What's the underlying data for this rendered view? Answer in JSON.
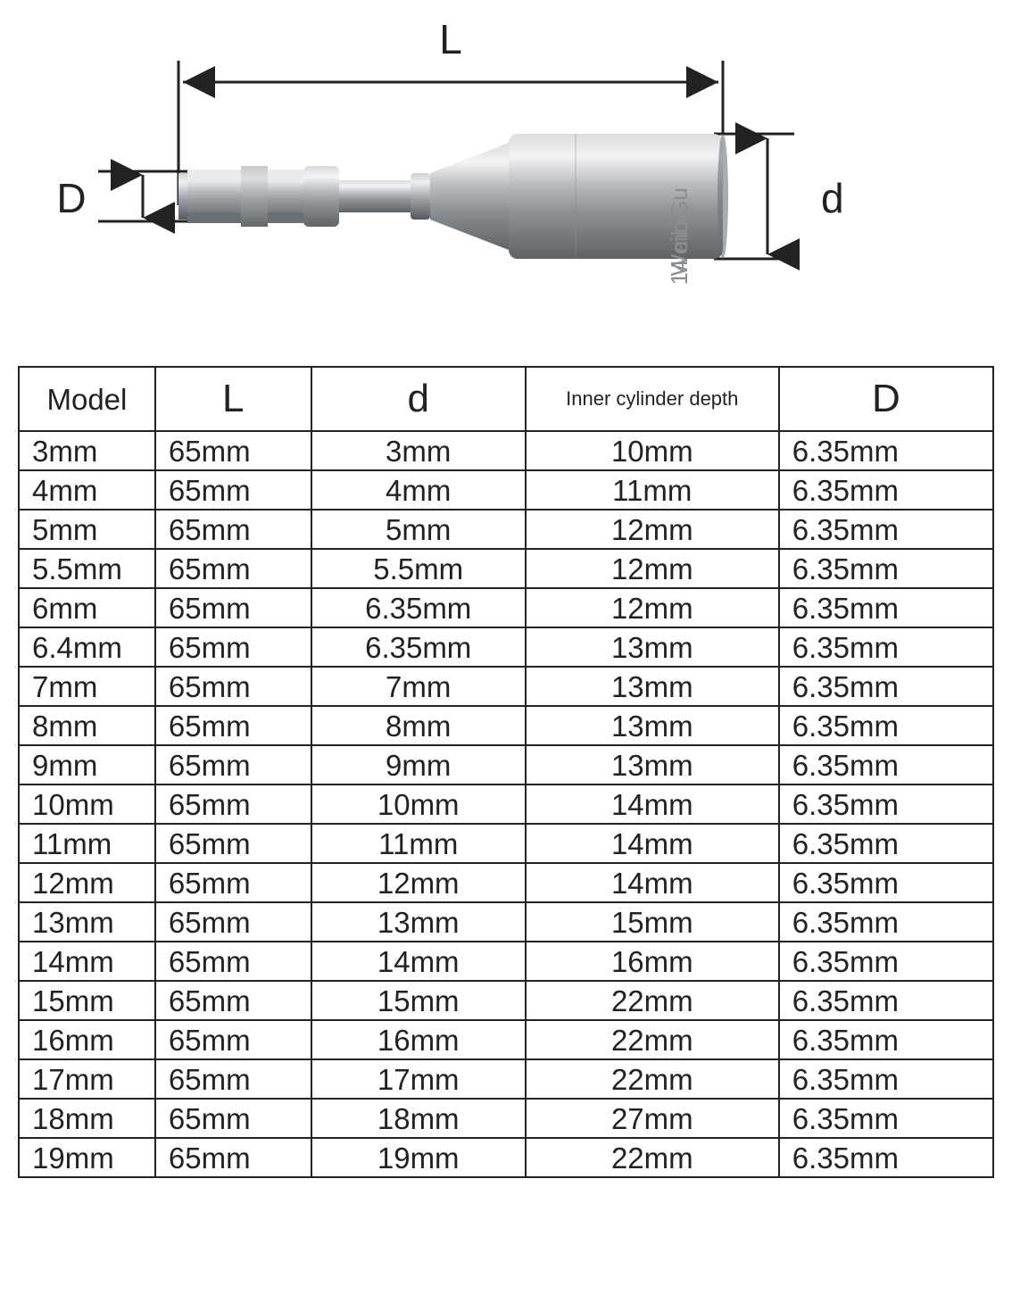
{
  "diagram": {
    "label_L": "L",
    "label_D": "D",
    "label_d": "d",
    "engraving_brand": "WeiLiGu",
    "engraving_size": "14 mm",
    "label_fontsize": 44,
    "label_color": "#222222",
    "dimension_line_color": "#222222",
    "dimension_line_width": 3,
    "tool_metal_light": "#c9cccf",
    "tool_metal_mid": "#a7abaf",
    "tool_metal_dark": "#7b8085",
    "tool_metal_shadow": "#55595e",
    "engraving_color": "#8a8e92",
    "background_color": "#ffffff"
  },
  "table": {
    "border_color": "#222222",
    "text_color": "#222222",
    "cell_fontsize": 33,
    "header_fontsize_label": 44,
    "header_fontsize_small": 22,
    "columns": [
      {
        "key": "model",
        "label": "Model",
        "width_pct": 14,
        "header_style": "normal"
      },
      {
        "key": "L",
        "label": "L",
        "width_pct": 16,
        "header_style": "big"
      },
      {
        "key": "d",
        "label": "d",
        "width_pct": 22,
        "header_style": "big"
      },
      {
        "key": "depth",
        "label": "Inner cylinder depth",
        "width_pct": 26,
        "header_style": "small"
      },
      {
        "key": "D",
        "label": "D",
        "width_pct": 22,
        "header_style": "big"
      }
    ],
    "rows": [
      {
        "model": "3mm",
        "L": "65mm",
        "d": "3mm",
        "depth": "10mm",
        "D": "6.35mm"
      },
      {
        "model": "4mm",
        "L": "65mm",
        "d": "4mm",
        "depth": "11mm",
        "D": "6.35mm"
      },
      {
        "model": "5mm",
        "L": "65mm",
        "d": "5mm",
        "depth": "12mm",
        "D": "6.35mm"
      },
      {
        "model": "5.5mm",
        "L": "65mm",
        "d": "5.5mm",
        "depth": "12mm",
        "D": "6.35mm"
      },
      {
        "model": "6mm",
        "L": "65mm",
        "d": "6.35mm",
        "depth": "12mm",
        "D": "6.35mm"
      },
      {
        "model": "6.4mm",
        "L": "65mm",
        "d": "6.35mm",
        "depth": "13mm",
        "D": "6.35mm"
      },
      {
        "model": "7mm",
        "L": "65mm",
        "d": "7mm",
        "depth": "13mm",
        "D": "6.35mm"
      },
      {
        "model": "8mm",
        "L": "65mm",
        "d": "8mm",
        "depth": "13mm",
        "D": "6.35mm"
      },
      {
        "model": "9mm",
        "L": "65mm",
        "d": "9mm",
        "depth": "13mm",
        "D": "6.35mm"
      },
      {
        "model": "10mm",
        "L": "65mm",
        "d": "10mm",
        "depth": "14mm",
        "D": "6.35mm"
      },
      {
        "model": "11mm",
        "L": "65mm",
        "d": "11mm",
        "depth": "14mm",
        "D": "6.35mm"
      },
      {
        "model": "12mm",
        "L": "65mm",
        "d": "12mm",
        "depth": "14mm",
        "D": "6.35mm"
      },
      {
        "model": "13mm",
        "L": "65mm",
        "d": "13mm",
        "depth": "15mm",
        "D": "6.35mm"
      },
      {
        "model": "14mm",
        "L": "65mm",
        "d": "14mm",
        "depth": "16mm",
        "D": "6.35mm"
      },
      {
        "model": "15mm",
        "L": "65mm",
        "d": "15mm",
        "depth": "22mm",
        "D": "6.35mm"
      },
      {
        "model": "16mm",
        "L": "65mm",
        "d": "16mm",
        "depth": "22mm",
        "D": "6.35mm"
      },
      {
        "model": "17mm",
        "L": "65mm",
        "d": "17mm",
        "depth": "22mm",
        "D": "6.35mm"
      },
      {
        "model": "18mm",
        "L": "65mm",
        "d": "18mm",
        "depth": "27mm",
        "D": "6.35mm"
      },
      {
        "model": "19mm",
        "L": "65mm",
        "d": "19mm",
        "depth": "22mm",
        "D": "6.35mm"
      }
    ]
  }
}
